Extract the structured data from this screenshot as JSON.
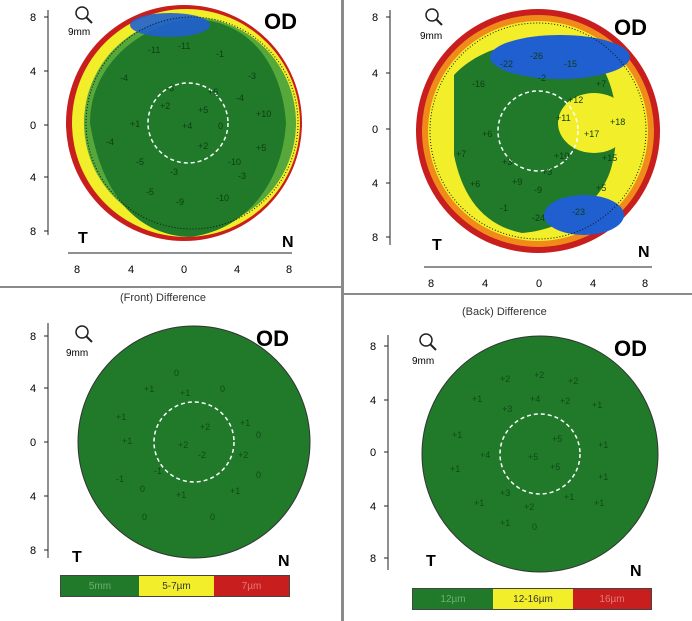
{
  "panels": [
    {
      "id": "top-left",
      "eye": "OD",
      "zoom": "9mm",
      "temporal": "T",
      "nasal": "N",
      "y_ticks": [
        "8",
        "4",
        "0",
        "4",
        "8"
      ],
      "x_ticks": [
        "8",
        "4",
        "0",
        "4",
        "8"
      ],
      "labels": [
        "-11",
        "-11",
        "-1",
        "-3",
        "+5",
        "+4",
        "0",
        "+2",
        "+6",
        "+10",
        "-4",
        "-4",
        "+1",
        "-5",
        "-5",
        "-10",
        "-3",
        "-9",
        "-10",
        "-3",
        "+5",
        "-3",
        "+2",
        "-4"
      ]
    },
    {
      "id": "top-right",
      "eye": "OD",
      "zoom": "9mm",
      "temporal": "T",
      "nasal": "N",
      "y_ticks": [
        "8",
        "4",
        "0",
        "4",
        "8"
      ],
      "x_ticks": [
        "8",
        "4",
        "0",
        "4",
        "8"
      ],
      "labels": [
        "-26",
        "-22",
        "-15",
        "-16",
        "-2",
        "+7",
        "+12",
        "+11",
        "+18",
        "+17",
        "+15",
        "+6",
        "+10",
        "+7",
        "+6",
        "+3",
        "-24",
        "-23",
        "-1",
        "+3",
        "+9",
        "+5",
        "-9"
      ]
    },
    {
      "id": "bottom-left",
      "caption": "(Front) Difference",
      "eye": "OD",
      "zoom": "9mm",
      "temporal": "T",
      "nasal": "N",
      "y_ticks": [
        "8",
        "4",
        "0",
        "4",
        "8"
      ],
      "labels": [
        "0",
        "+1",
        "+1",
        "0",
        "+1",
        "+2",
        "-2",
        "+1",
        "+2",
        "+1",
        "+2",
        "0",
        "-1",
        "0",
        "+1",
        "-1",
        "+1",
        "0",
        "0",
        "0"
      ]
    },
    {
      "id": "bottom-right",
      "caption": "(Back) Difference",
      "eye": "OD",
      "zoom": "9mm",
      "temporal": "T",
      "nasal": "N",
      "y_ticks": [
        "8",
        "4",
        "0",
        "4",
        "8"
      ],
      "labels": [
        "+2",
        "+2",
        "+2",
        "+1",
        "+2",
        "+4",
        "+3",
        "+1",
        "+1",
        "+4",
        "+5",
        "+5",
        "+1",
        "+1",
        "+1",
        "+5",
        "+3",
        "+1",
        "+1",
        "+2",
        "+1",
        "0",
        "+1"
      ]
    }
  ],
  "legends": [
    {
      "id": "front",
      "segments": [
        {
          "label": "5mm",
          "color": "green"
        },
        {
          "label": "5-7µm",
          "color": "yellow"
        },
        {
          "label": "7µm",
          "color": "red"
        }
      ]
    },
    {
      "id": "back",
      "segments": [
        {
          "label": "12µm",
          "color": "green"
        },
        {
          "label": "12-16µm",
          "color": "yellow"
        },
        {
          "label": "16µm",
          "color": "red"
        }
      ]
    }
  ],
  "colors": {
    "green": "#207a2a",
    "yellow": "#f2ee2a",
    "red": "#c81e1e",
    "blue": "#1f5fd0",
    "orange": "#f08a1a"
  }
}
